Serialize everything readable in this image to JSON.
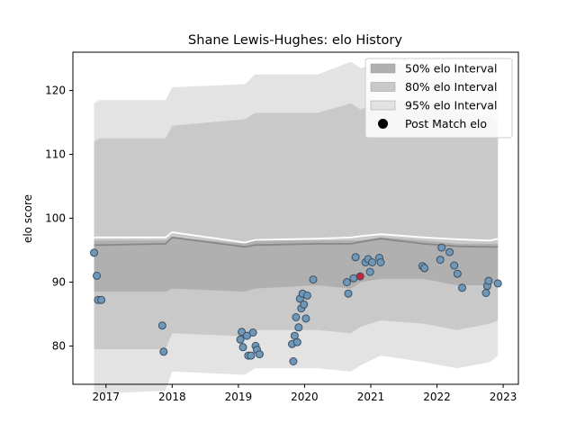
{
  "chart_data": {
    "type": "scatter",
    "title": "Shane Lewis-Hughes: elo History",
    "xlabel": "",
    "ylabel": "elo score",
    "xlim": [
      2016.5,
      2023.23
    ],
    "ylim": [
      74.0,
      126.0
    ],
    "x_ticks": [
      2017,
      2018,
      2019,
      2020,
      2021,
      2022,
      2023
    ],
    "x_tick_labels": [
      "2017",
      "2018",
      "2019",
      "2020",
      "2021",
      "2022",
      "2023"
    ],
    "y_ticks": [
      80,
      90,
      100,
      110,
      120
    ],
    "y_tick_labels": [
      "80",
      "90",
      "100",
      "110",
      "120"
    ],
    "legend": {
      "position": "top-right",
      "entries": [
        "50% elo Interval",
        "80% elo Interval",
        "95% elo Interval",
        "Post Match elo"
      ]
    },
    "colors": {
      "band50": "#b0b0b0",
      "band80": "#c9c9c9",
      "band95": "#e3e3e3",
      "mean_line": "#888888",
      "upper_line": "#ffffff",
      "point_fill": "#6f97b8",
      "point_edge": "#3b4f61",
      "highlight_point": "#c8233c"
    },
    "interval_x": [
      2016.82,
      2016.9,
      2017.9,
      2018.0,
      2019.1,
      2019.25,
      2020.2,
      2020.7,
      2020.85,
      2021.15,
      2021.8,
      2022.3,
      2022.8,
      2022.92
    ],
    "band95_upper": [
      118.0,
      118.5,
      118.5,
      120.5,
      121.0,
      122.5,
      122.5,
      124.5,
      123.5,
      124.5,
      124.0,
      122.5,
      122.5,
      121.0
    ],
    "band80_upper": [
      112.0,
      112.5,
      112.5,
      114.5,
      115.5,
      116.5,
      116.5,
      118.0,
      117.0,
      118.5,
      118.0,
      116.5,
      116.0,
      115.0
    ],
    "band50_upper": [
      96.5,
      96.5,
      96.5,
      97.0,
      96.0,
      96.5,
      96.5,
      96.5,
      96.5,
      97.0,
      96.5,
      96.0,
      96.0,
      96.0
    ],
    "mean_line": [
      95.8,
      95.8,
      96.0,
      97.0,
      95.5,
      95.8,
      96.0,
      96.0,
      96.3,
      96.8,
      96.0,
      95.6,
      95.5,
      95.5
    ],
    "upper_line": [
      97.0,
      97.0,
      97.0,
      97.8,
      96.2,
      96.6,
      96.8,
      97.0,
      97.2,
      97.5,
      97.0,
      96.7,
      96.5,
      96.8
    ],
    "band50_lower": [
      88.5,
      88.5,
      88.5,
      89.0,
      88.5,
      89.0,
      89.5,
      89.0,
      90.0,
      90.5,
      90.5,
      89.5,
      89.5,
      90.0
    ],
    "band80_lower": [
      79.5,
      79.5,
      79.5,
      82.0,
      81.5,
      82.5,
      82.5,
      82.0,
      83.0,
      84.0,
      83.5,
      82.5,
      83.5,
      84.0
    ],
    "band95_lower": [
      72.5,
      72.5,
      73.0,
      76.0,
      75.5,
      76.5,
      76.5,
      76.0,
      77.0,
      78.5,
      77.5,
      76.5,
      77.5,
      78.5
    ],
    "points": [
      {
        "x": 2016.82,
        "y": 94.6
      },
      {
        "x": 2016.86,
        "y": 91.0
      },
      {
        "x": 2016.88,
        "y": 87.2
      },
      {
        "x": 2016.93,
        "y": 87.2
      },
      {
        "x": 2017.85,
        "y": 83.2
      },
      {
        "x": 2017.87,
        "y": 79.1
      },
      {
        "x": 2019.03,
        "y": 81.0
      },
      {
        "x": 2019.05,
        "y": 82.2
      },
      {
        "x": 2019.07,
        "y": 79.8
      },
      {
        "x": 2019.13,
        "y": 81.6
      },
      {
        "x": 2019.15,
        "y": 78.5
      },
      {
        "x": 2019.19,
        "y": 78.5
      },
      {
        "x": 2019.22,
        "y": 82.1
      },
      {
        "x": 2019.26,
        "y": 80.0
      },
      {
        "x": 2019.28,
        "y": 79.4
      },
      {
        "x": 2019.32,
        "y": 78.7
      },
      {
        "x": 2019.81,
        "y": 80.3
      },
      {
        "x": 2019.83,
        "y": 77.6
      },
      {
        "x": 2019.85,
        "y": 81.6
      },
      {
        "x": 2019.87,
        "y": 84.5
      },
      {
        "x": 2019.89,
        "y": 80.6
      },
      {
        "x": 2019.91,
        "y": 82.9
      },
      {
        "x": 2019.93,
        "y": 87.4
      },
      {
        "x": 2019.95,
        "y": 85.9
      },
      {
        "x": 2019.97,
        "y": 88.2
      },
      {
        "x": 2019.99,
        "y": 86.5
      },
      {
        "x": 2020.02,
        "y": 84.3
      },
      {
        "x": 2020.04,
        "y": 87.9
      },
      {
        "x": 2020.13,
        "y": 90.4
      },
      {
        "x": 2020.64,
        "y": 90.0
      },
      {
        "x": 2020.66,
        "y": 88.2
      },
      {
        "x": 2020.74,
        "y": 90.6
      },
      {
        "x": 2020.77,
        "y": 93.9
      },
      {
        "x": 2020.92,
        "y": 93.1
      },
      {
        "x": 2020.96,
        "y": 93.6
      },
      {
        "x": 2020.99,
        "y": 91.6
      },
      {
        "x": 2021.02,
        "y": 93.1
      },
      {
        "x": 2021.13,
        "y": 93.8
      },
      {
        "x": 2021.15,
        "y": 93.1
      },
      {
        "x": 2021.78,
        "y": 92.5
      },
      {
        "x": 2021.81,
        "y": 92.2
      },
      {
        "x": 2022.05,
        "y": 93.5
      },
      {
        "x": 2022.07,
        "y": 95.4
      },
      {
        "x": 2022.19,
        "y": 94.7
      },
      {
        "x": 2022.26,
        "y": 92.6
      },
      {
        "x": 2022.31,
        "y": 91.3
      },
      {
        "x": 2022.38,
        "y": 89.1
      },
      {
        "x": 2022.74,
        "y": 88.3
      },
      {
        "x": 2022.76,
        "y": 89.4
      },
      {
        "x": 2022.78,
        "y": 90.2
      },
      {
        "x": 2022.92,
        "y": 89.8
      }
    ],
    "highlight_point": {
      "x": 2020.84,
      "y": 90.9
    }
  }
}
